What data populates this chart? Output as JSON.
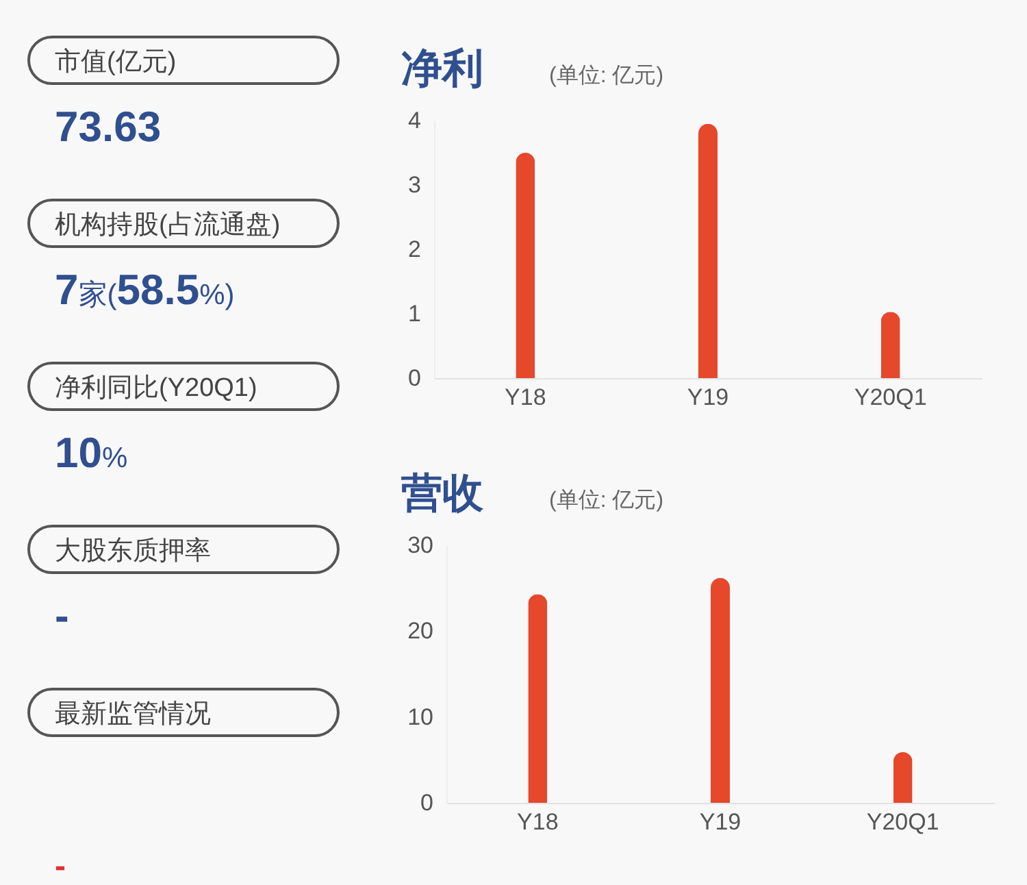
{
  "chart_data": [
    {
      "type": "other",
      "annotations": [
        "市值(亿元)",
        "73.63",
        "机构持股(占流通盘)",
        "7家(58.5%)",
        "净利同比(Y20Q1)",
        "10%",
        "大股东质押率",
        "-",
        "最新监管情况",
        "-"
      ]
    },
    {
      "type": "bar",
      "title": "净利",
      "subtitle": "(单位: 亿元)",
      "categories": [
        "Y18",
        "Y19",
        "Y20Q1"
      ],
      "values": [
        3.5,
        3.95,
        1.03
      ],
      "color": "#e5482b",
      "ylim": [
        0,
        4
      ],
      "yticks": [
        0,
        1,
        2,
        3,
        4
      ],
      "grid": false
    },
    {
      "type": "bar",
      "title": "营收",
      "subtitle": "(单位: 亿元)",
      "categories": [
        "Y18",
        "Y19",
        "Y20Q1"
      ],
      "values": [
        24.3,
        26.2,
        5.9
      ],
      "color": "#e5482b",
      "ylim": [
        0,
        30
      ],
      "yticks": [
        0,
        10,
        20,
        30
      ],
      "grid": false
    }
  ]
}
